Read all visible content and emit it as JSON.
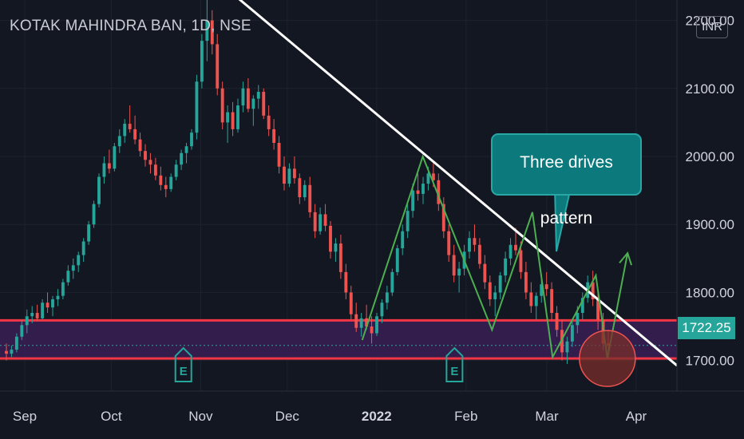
{
  "header": {
    "symbol_title": "KOTAK MAHINDRA BAN, 1D, NSE",
    "currency": "INR"
  },
  "price_badge": "1722.25",
  "annotation": {
    "callout_text": "Three drives pattern",
    "earnings_marker": "E"
  },
  "colors": {
    "background": "#131722",
    "up": "#26a69a",
    "down": "#ef5350",
    "support_zone": "#3a1f55",
    "support_lines": "#f23645",
    "trendline": "#ffffff",
    "pattern_lines": "#4caf50",
    "callout_fill": "#0c7a7d"
  },
  "chart_data": {
    "type": "candlestick",
    "title": "KOTAK MAHINDRA BAN, 1D, NSE",
    "currency": "INR",
    "last_price": 1722.25,
    "ylim": [
      1655,
      2230
    ],
    "y_ticks": [
      1700,
      1800,
      1900,
      2000,
      2100,
      2200
    ],
    "x_ticks": [
      "Sep",
      "Oct",
      "Nov",
      "Dec",
      "2022",
      "Feb",
      "Mar",
      "Apr"
    ],
    "support_zone": [
      1703,
      1759
    ],
    "trendline": [
      {
        "x": "Oct 26",
        "y": 2300
      },
      {
        "x": "Mar 26",
        "y": 1764
      }
    ],
    "three_drives_pattern": [
      {
        "x": "Dec 27",
        "y": 1730
      },
      {
        "x": "Jan 17",
        "y": 2000
      },
      {
        "x": "Feb 10",
        "y": 1745
      },
      {
        "x": "Feb 24",
        "y": 1918
      },
      {
        "x": "Mar 03",
        "y": 1705
      },
      {
        "x": "Mar 18",
        "y": 1825
      },
      {
        "x": "Mar 22",
        "y": 1703
      },
      {
        "x": "Mar 29",
        "y": 1858
      }
    ],
    "earnings_events": [
      "Oct 26",
      "Jan 28"
    ],
    "series": [
      {
        "ohlc": [
          [
            1714,
            1725,
            1700,
            1710
          ],
          [
            1710,
            1722,
            1705,
            1716
          ],
          [
            1716,
            1740,
            1712,
            1735
          ],
          [
            1735,
            1760,
            1730,
            1752
          ],
          [
            1752,
            1775,
            1740,
            1765
          ],
          [
            1765,
            1780,
            1755,
            1770
          ],
          [
            1770,
            1782,
            1758,
            1762
          ],
          [
            1762,
            1790,
            1760,
            1785
          ],
          [
            1785,
            1800,
            1770,
            1778
          ],
          [
            1778,
            1795,
            1765,
            1790
          ],
          [
            1790,
            1805,
            1780,
            1795
          ],
          [
            1795,
            1820,
            1790,
            1815
          ],
          [
            1815,
            1840,
            1810,
            1832
          ],
          [
            1832,
            1850,
            1820,
            1840
          ],
          [
            1840,
            1860,
            1830,
            1855
          ],
          [
            1855,
            1880,
            1845,
            1875
          ],
          [
            1875,
            1905,
            1870,
            1900
          ],
          [
            1900,
            1935,
            1895,
            1930
          ],
          [
            1930,
            1975,
            1925,
            1970
          ],
          [
            1970,
            2000,
            1960,
            1990
          ],
          [
            1990,
            2010,
            1975,
            1982
          ],
          [
            1982,
            2020,
            1978,
            2015
          ],
          [
            2015,
            2040,
            2005,
            2030
          ],
          [
            2030,
            2055,
            2020,
            2048
          ],
          [
            2048,
            2075,
            2035,
            2040
          ],
          [
            2040,
            2060,
            2018,
            2025
          ],
          [
            2025,
            2035,
            2000,
            2008
          ],
          [
            2008,
            2018,
            1985,
            1995
          ],
          [
            1995,
            2005,
            1975,
            1988
          ],
          [
            1988,
            1998,
            1965,
            1972
          ],
          [
            1972,
            1985,
            1950,
            1958
          ],
          [
            1958,
            1970,
            1940,
            1952
          ],
          [
            1952,
            1975,
            1948,
            1970
          ],
          [
            1970,
            1995,
            1965,
            1988
          ],
          [
            1988,
            2010,
            1980,
            2005
          ],
          [
            2005,
            2020,
            1990,
            2015
          ],
          [
            2015,
            2040,
            2010,
            2035
          ],
          [
            2035,
            2120,
            2025,
            2110
          ],
          [
            2110,
            2180,
            2100,
            2170
          ],
          [
            2170,
            2240,
            2140,
            2200
          ],
          [
            2200,
            2215,
            2150,
            2165
          ],
          [
            2165,
            2180,
            2090,
            2100
          ],
          [
            2100,
            2110,
            2040,
            2050
          ],
          [
            2050,
            2075,
            2020,
            2065
          ],
          [
            2065,
            2080,
            2030,
            2040
          ],
          [
            2040,
            2085,
            2035,
            2075
          ],
          [
            2075,
            2110,
            2065,
            2100
          ],
          [
            2100,
            2115,
            2065,
            2070
          ],
          [
            2070,
            2090,
            2045,
            2085
          ],
          [
            2085,
            2105,
            2070,
            2095
          ],
          [
            2095,
            2100,
            2055,
            2060
          ],
          [
            2060,
            2075,
            2030,
            2040
          ],
          [
            2040,
            2055,
            2010,
            2020
          ],
          [
            2020,
            2030,
            1975,
            1985
          ],
          [
            1985,
            2000,
            1950,
            1960
          ],
          [
            1960,
            1990,
            1955,
            1982
          ],
          [
            1982,
            2000,
            1960,
            1968
          ],
          [
            1968,
            1975,
            1930,
            1940
          ],
          [
            1940,
            1965,
            1935,
            1958
          ],
          [
            1958,
            1970,
            1910,
            1918
          ],
          [
            1918,
            1930,
            1880,
            1890
          ],
          [
            1890,
            1925,
            1885,
            1915
          ],
          [
            1915,
            1930,
            1890,
            1898
          ],
          [
            1898,
            1905,
            1850,
            1860
          ],
          [
            1860,
            1880,
            1845,
            1872
          ],
          [
            1872,
            1885,
            1820,
            1830
          ],
          [
            1830,
            1842,
            1790,
            1800
          ],
          [
            1800,
            1810,
            1760,
            1768
          ],
          [
            1768,
            1785,
            1742,
            1748
          ],
          [
            1748,
            1770,
            1735,
            1762
          ],
          [
            1762,
            1782,
            1745,
            1750
          ],
          [
            1750,
            1765,
            1725,
            1740
          ],
          [
            1740,
            1770,
            1736,
            1765
          ],
          [
            1765,
            1790,
            1755,
            1785
          ],
          [
            1785,
            1810,
            1775,
            1800
          ],
          [
            1800,
            1835,
            1795,
            1830
          ],
          [
            1830,
            1870,
            1825,
            1865
          ],
          [
            1865,
            1900,
            1855,
            1890
          ],
          [
            1890,
            1930,
            1880,
            1920
          ],
          [
            1920,
            1960,
            1910,
            1950
          ],
          [
            1950,
            1975,
            1935,
            1945
          ],
          [
            1945,
            1970,
            1930,
            1960
          ],
          [
            1960,
            1985,
            1950,
            1975
          ],
          [
            1975,
            1990,
            1955,
            1965
          ],
          [
            1965,
            1975,
            1920,
            1930
          ],
          [
            1930,
            1940,
            1880,
            1890
          ],
          [
            1890,
            1900,
            1845,
            1855
          ],
          [
            1855,
            1870,
            1815,
            1825
          ],
          [
            1825,
            1845,
            1800,
            1835
          ],
          [
            1835,
            1870,
            1825,
            1860
          ],
          [
            1860,
            1890,
            1850,
            1880
          ],
          [
            1880,
            1900,
            1860,
            1870
          ],
          [
            1870,
            1880,
            1835,
            1842
          ],
          [
            1842,
            1855,
            1805,
            1815
          ],
          [
            1815,
            1825,
            1780,
            1790
          ],
          [
            1790,
            1810,
            1765,
            1800
          ],
          [
            1800,
            1830,
            1790,
            1825
          ],
          [
            1825,
            1860,
            1815,
            1850
          ],
          [
            1850,
            1880,
            1840,
            1870
          ],
          [
            1870,
            1895,
            1855,
            1862
          ],
          [
            1862,
            1875,
            1820,
            1830
          ],
          [
            1830,
            1845,
            1790,
            1800
          ],
          [
            1800,
            1815,
            1770,
            1780
          ],
          [
            1780,
            1800,
            1760,
            1795
          ],
          [
            1795,
            1820,
            1785,
            1812
          ],
          [
            1812,
            1830,
            1795,
            1805
          ],
          [
            1805,
            1815,
            1760,
            1770
          ],
          [
            1770,
            1780,
            1735,
            1745
          ],
          [
            1745,
            1760,
            1700,
            1712
          ],
          [
            1712,
            1735,
            1695,
            1728
          ],
          [
            1728,
            1760,
            1720,
            1752
          ],
          [
            1752,
            1780,
            1740,
            1770
          ],
          [
            1770,
            1800,
            1760,
            1792
          ],
          [
            1792,
            1825,
            1785,
            1815
          ],
          [
            1815,
            1832,
            1780,
            1790
          ],
          [
            1790,
            1800,
            1745,
            1760
          ],
          [
            1760,
            1770,
            1715,
            1725
          ],
          [
            1725,
            1745,
            1705,
            1722
          ]
        ]
      }
    ]
  }
}
